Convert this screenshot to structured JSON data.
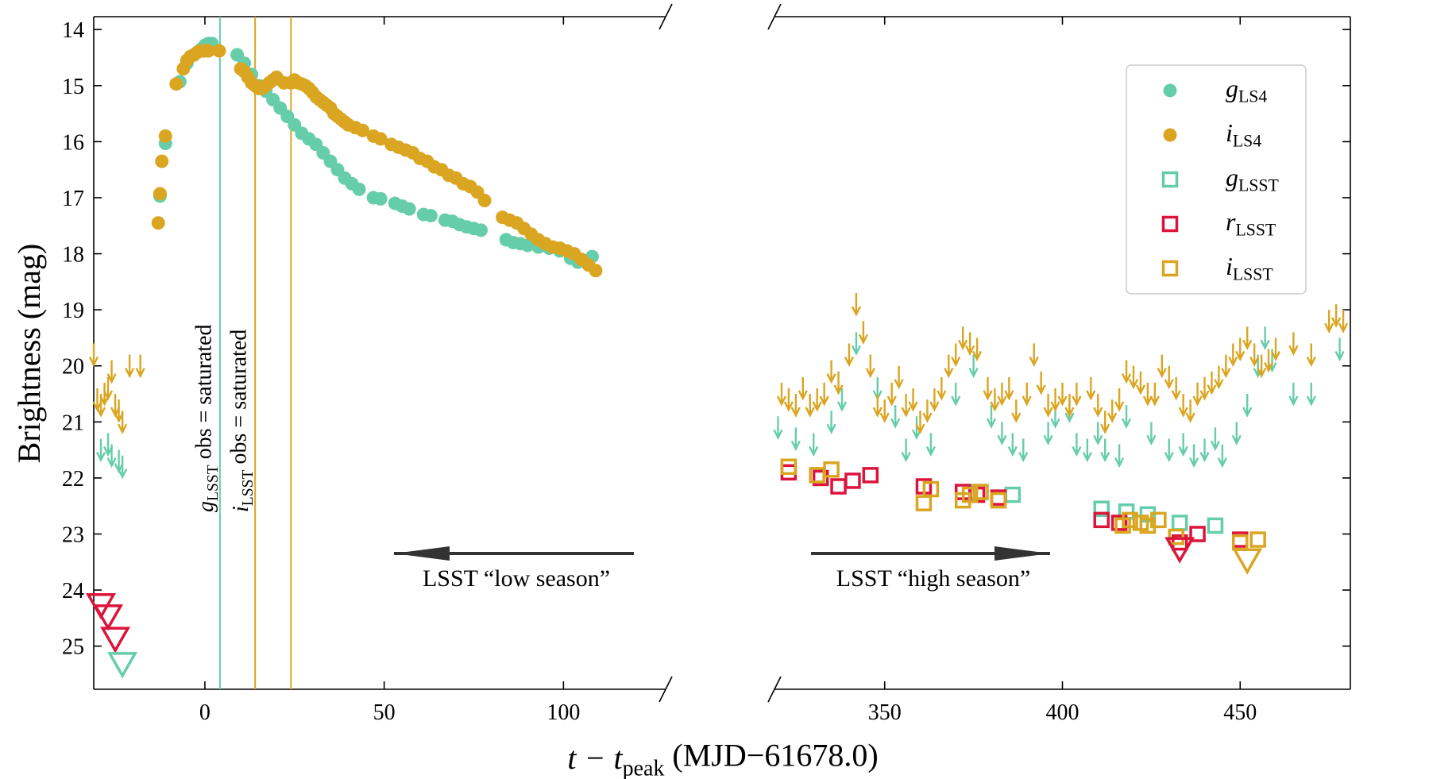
{
  "chart_data": {
    "type": "scatter",
    "xlabel": {
      "main": "t − t",
      "sub": "peak",
      "rest": " (MJD−61678.0)"
    },
    "ylabel": "Brightness (mag)",
    "ylim": [
      25.77,
      13.77
    ],
    "yticks": [
      14,
      15,
      16,
      17,
      18,
      19,
      20,
      21,
      22,
      23,
      24,
      25
    ],
    "invert_y": true,
    "x_segments": [
      {
        "xlim": [
          -31,
          128.5
        ],
        "xticks": [
          0,
          50,
          100
        ]
      },
      {
        "xlim": [
          319,
          481
        ],
        "xticks": [
          350,
          400,
          450
        ]
      }
    ],
    "legend": "upper right",
    "saturated_epochs": [
      {
        "x": 4.2,
        "color": "#66cdaa",
        "label": {
          "main": "g",
          "sub": "LSST",
          "rest": " obs = saturated"
        }
      },
      {
        "x": 14.0,
        "color": "#daa520",
        "label": {
          "main": "i",
          "sub": "LSST",
          "rest": " obs = saturated"
        }
      },
      {
        "x": 24.0,
        "color": "#daa520"
      }
    ],
    "annotations": [
      "LSST “low season”",
      "LSST “high season”"
    ],
    "series": [
      {
        "name": "g",
        "sub": "LS4",
        "color": "#66cdaa",
        "marker": "circle",
        "x": [
          -12.5,
          -11,
          -7,
          -5,
          -3,
          -1,
          0,
          1,
          2,
          9,
          11,
          13,
          15,
          17,
          19,
          21,
          23,
          25,
          27,
          29,
          31,
          33,
          35,
          37,
          39,
          41,
          43,
          47,
          49,
          53,
          55,
          57,
          61,
          63,
          67,
          69,
          71,
          73,
          75,
          77,
          84,
          86,
          88,
          90,
          93,
          96,
          99,
          102,
          104,
          108
        ],
        "y": [
          16.97,
          16.03,
          14.93,
          14.6,
          14.45,
          14.35,
          14.28,
          14.25,
          14.25,
          14.45,
          14.6,
          14.8,
          15.0,
          15.1,
          15.25,
          15.4,
          15.55,
          15.7,
          15.85,
          15.95,
          16.05,
          16.2,
          16.35,
          16.5,
          16.65,
          16.75,
          16.85,
          17.0,
          17.02,
          17.1,
          17.15,
          17.2,
          17.3,
          17.32,
          17.4,
          17.42,
          17.48,
          17.52,
          17.55,
          17.58,
          17.75,
          17.8,
          17.82,
          17.85,
          17.88,
          17.9,
          17.95,
          18.08,
          18.15,
          18.05
        ]
      },
      {
        "name": "i",
        "sub": "LS4",
        "color": "#daa520",
        "marker": "circle",
        "x": [
          -13,
          -12.5,
          -12,
          -11,
          -8,
          -6,
          -5,
          -4,
          -3,
          -2,
          -1,
          0,
          1,
          4,
          10,
          11,
          12,
          13,
          14,
          15,
          16,
          17,
          18,
          19,
          20,
          22,
          24,
          25,
          26,
          27,
          28,
          29,
          30,
          31,
          32,
          33,
          34,
          35,
          36,
          37,
          38,
          39,
          40,
          42,
          44,
          47,
          49,
          52,
          54,
          56,
          58,
          60,
          62,
          64,
          66,
          68,
          70,
          72,
          74,
          76,
          78,
          83,
          85,
          87,
          89,
          91,
          93,
          95,
          97,
          99,
          101,
          103,
          105,
          107,
          109
        ],
        "y": [
          17.45,
          16.93,
          16.35,
          15.9,
          14.97,
          14.7,
          14.55,
          14.48,
          14.45,
          14.4,
          14.38,
          14.38,
          14.38,
          14.38,
          14.7,
          14.75,
          14.85,
          14.95,
          15.0,
          15.05,
          15.05,
          15.0,
          14.95,
          14.9,
          14.85,
          14.95,
          14.95,
          14.9,
          14.95,
          14.97,
          15.0,
          15.05,
          15.12,
          15.2,
          15.25,
          15.3,
          15.35,
          15.4,
          15.5,
          15.55,
          15.6,
          15.65,
          15.7,
          15.75,
          15.8,
          15.9,
          15.95,
          16.05,
          16.1,
          16.15,
          16.2,
          16.3,
          16.35,
          16.45,
          16.5,
          16.6,
          16.65,
          16.75,
          16.8,
          16.9,
          17.05,
          17.35,
          17.4,
          17.45,
          17.55,
          17.65,
          17.75,
          17.82,
          17.88,
          17.9,
          17.95,
          18.0,
          18.1,
          18.2,
          18.3
        ]
      },
      {
        "name": "g",
        "sub": "LSST",
        "color": "#66cdaa",
        "marker": "square",
        "x": [
          376,
          386,
          411,
          418,
          424,
          433,
          443
        ],
        "y": [
          22.25,
          22.3,
          22.55,
          22.6,
          22.65,
          22.8,
          22.85
        ]
      },
      {
        "name": "r",
        "sub": "LSST",
        "color": "#dc143c",
        "marker": "square",
        "x": [
          323,
          332,
          337,
          341,
          346,
          361,
          372,
          376,
          382,
          411,
          416,
          433,
          438,
          450
        ],
        "y": [
          21.9,
          22.0,
          22.15,
          22.05,
          21.95,
          22.15,
          22.25,
          22.3,
          22.35,
          22.75,
          22.8,
          23.15,
          23.0,
          23.1
        ]
      },
      {
        "name": "i",
        "sub": "LSST",
        "color": "#daa520",
        "marker": "square",
        "x": [
          323,
          331,
          335,
          361,
          363,
          372,
          374,
          377,
          382,
          417,
          419,
          422,
          424,
          427,
          432,
          450,
          455
        ],
        "y": [
          21.8,
          21.95,
          21.85,
          22.45,
          22.2,
          22.4,
          22.3,
          22.25,
          22.4,
          22.85,
          22.75,
          22.8,
          22.85,
          22.75,
          23.05,
          23.15,
          23.1
        ]
      },
      {
        "color": "#66cdaa",
        "marker": "arrow",
        "x": [
          -29,
          -27,
          -26,
          -24,
          -23,
          320,
          325,
          330,
          335,
          338,
          342,
          348,
          353,
          356,
          359,
          363,
          370,
          375,
          380,
          383,
          386,
          389,
          396,
          398,
          402,
          404,
          407,
          410,
          412,
          416,
          418,
          425,
          430,
          434,
          437,
          440,
          443,
          445,
          449,
          452,
          455,
          457,
          459,
          465,
          470,
          478
        ],
        "y": [
          21.3,
          21.2,
          21.4,
          21.5,
          21.6,
          20.9,
          21.1,
          21.2,
          20.8,
          20.4,
          19.4,
          20.2,
          20.7,
          21.3,
          20.9,
          21.2,
          20.3,
          19.8,
          20.7,
          21.0,
          21.2,
          21.3,
          21.0,
          20.7,
          20.6,
          21.2,
          21.3,
          21.0,
          21.3,
          21.4,
          20.7,
          21.0,
          21.3,
          21.2,
          21.4,
          21.3,
          21.1,
          21.4,
          21.0,
          20.5,
          19.8,
          19.3,
          19.7,
          20.3,
          20.3,
          19.5
        ]
      },
      {
        "color": "#daa520",
        "marker": "arrow",
        "x": [
          -31,
          -30,
          -29,
          -28,
          -27,
          -26,
          -25,
          -24,
          -23,
          -21,
          -18,
          321,
          323,
          325,
          327,
          329,
          331,
          333,
          335,
          337,
          340,
          342,
          344,
          346,
          348,
          350,
          352,
          354,
          356,
          358,
          360,
          362,
          364,
          366,
          368,
          370,
          372,
          374,
          376,
          379,
          381,
          383,
          385,
          387,
          390,
          392,
          394,
          396,
          398,
          400,
          402,
          404,
          408,
          410,
          412,
          414,
          416,
          418,
          420,
          422,
          424,
          426,
          428,
          430,
          432,
          434,
          436,
          438,
          440,
          442,
          444,
          446,
          448,
          450,
          452,
          454,
          456,
          458,
          460,
          465,
          470,
          475,
          477,
          479
        ],
        "y": [
          19.6,
          20.4,
          20.5,
          20.3,
          20.2,
          19.9,
          20.5,
          20.6,
          20.8,
          19.8,
          19.8,
          20.3,
          20.4,
          20.5,
          20.2,
          20.5,
          20.4,
          20.3,
          19.9,
          20.1,
          19.6,
          18.7,
          19.2,
          19.8,
          20.5,
          20.6,
          20.3,
          20.0,
          20.5,
          20.4,
          20.8,
          20.6,
          20.4,
          20.2,
          19.8,
          19.6,
          19.3,
          19.4,
          19.5,
          20.2,
          20.4,
          20.3,
          20.2,
          20.6,
          20.3,
          19.6,
          20.1,
          20.5,
          20.4,
          20.3,
          20.5,
          20.3,
          20.2,
          20.5,
          20.8,
          20.6,
          20.4,
          19.9,
          20.0,
          20.1,
          20.3,
          20.3,
          19.8,
          20.0,
          20.2,
          20.5,
          20.6,
          20.3,
          20.2,
          20.1,
          20.0,
          19.8,
          19.6,
          19.5,
          19.3,
          19.6,
          19.8,
          19.7,
          19.5,
          19.4,
          19.6,
          19.0,
          18.9,
          19.0
        ]
      },
      {
        "color": "#dc143c",
        "marker": "triangle",
        "x": [
          -29,
          -27,
          -25,
          433
        ],
        "y": [
          24.25,
          24.45,
          24.85,
          23.25
        ]
      },
      {
        "color": "#66cdaa",
        "marker": "triangle",
        "x": [
          -23
        ],
        "y": [
          25.3
        ]
      },
      {
        "color": "#daa520",
        "marker": "triangle",
        "x": [
          452
        ],
        "y": [
          23.45
        ]
      }
    ]
  }
}
